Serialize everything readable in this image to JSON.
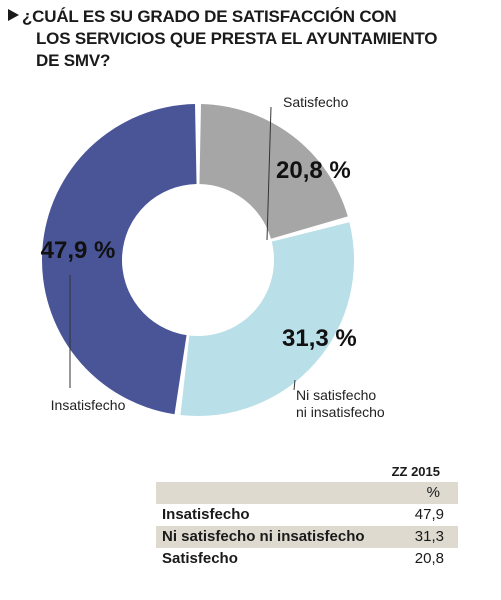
{
  "title": {
    "lines": [
      "¿CUÁL ES SU GRADO DE SATISFACCIÓN CON",
      "LOS SERVICIOS QUE PRESTA EL AYUNTAMIENTO",
      "DE SMV?"
    ]
  },
  "chart_data": {
    "type": "pie",
    "variant": "donut",
    "slices": [
      {
        "category": "Satisfecho",
        "value": 20.8,
        "value_label": "20,8 %",
        "color": "#a6a6a6",
        "label_lines": [
          "Satisfecho"
        ]
      },
      {
        "category": "Ni satisfecho ni insatisfecho",
        "value": 31.3,
        "value_label": "31,3 %",
        "color": "#b9dfe9",
        "label_lines": [
          "Ni satisfecho",
          "ni insatisfecho"
        ]
      },
      {
        "category": "Insatisfecho",
        "value": 47.9,
        "value_label": "47,9 %",
        "color": "#4a5598",
        "label_lines": [
          "Insatisfecho"
        ]
      }
    ]
  },
  "table": {
    "header": "ZZ 2015",
    "units": "%",
    "rows": [
      {
        "label": "Insatisfecho",
        "value": "47,9"
      },
      {
        "label": "Ni satisfecho ni insatisfecho",
        "value": "31,3"
      },
      {
        "label": "Satisfecho",
        "value": "20,8"
      }
    ]
  }
}
